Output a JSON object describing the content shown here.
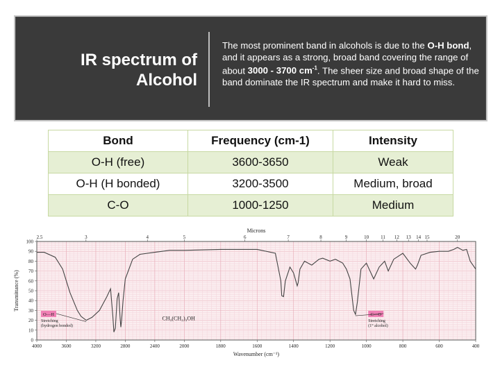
{
  "header": {
    "title_line1": "IR spectrum of",
    "title_line2": "Alcohol",
    "desc": {
      "t1": "The most prominent band in alcohols is due to the ",
      "b1": "O-H bond",
      "t2": ", and it appears as a strong, broad band covering the range of about ",
      "b2": "3000 - 3700 cm",
      "sup": "-1",
      "t3": ". The sheer size and broad shape of the band dominate the IR spectrum and make it hard to miss."
    }
  },
  "table": {
    "headers": [
      "Bond",
      "Frequency (cm-1)",
      "Intensity"
    ],
    "rows": [
      [
        "O-H (free)",
        "3600-3650",
        "Weak"
      ],
      [
        "O-H (H bonded)",
        "3200-3500",
        "Medium, broad"
      ],
      [
        "C-O",
        "1000-1250",
        "Medium"
      ]
    ]
  },
  "chart_data": {
    "type": "line",
    "title": "Microns",
    "xlabel": "Wavenumber (cm⁻¹)",
    "ylabel": "Transmittance (%)",
    "xlim": [
      4000,
      400
    ],
    "ylim": [
      0,
      100
    ],
    "x_ticks": [
      4000,
      3600,
      3200,
      2800,
      2400,
      2000,
      1800,
      1600,
      1400,
      1200,
      1000,
      800,
      600,
      400
    ],
    "y_ticks": [
      0,
      10,
      20,
      30,
      40,
      50,
      60,
      70,
      80,
      90,
      100
    ],
    "micron_ticks": [
      {
        "label": "2.5",
        "wn": 4000
      },
      {
        "label": "3",
        "wn": 3333
      },
      {
        "label": "4",
        "wn": 2500
      },
      {
        "label": "5",
        "wn": 2000
      },
      {
        "label": "6",
        "wn": 1667
      },
      {
        "label": "7",
        "wn": 1429
      },
      {
        "label": "8",
        "wn": 1250
      },
      {
        "label": "9",
        "wn": 1111
      },
      {
        "label": "10",
        "wn": 1000
      },
      {
        "label": "11",
        "wn": 909
      },
      {
        "label": "12",
        "wn": 833
      },
      {
        "label": "13",
        "wn": 769
      },
      {
        "label": "14",
        "wn": 714
      },
      {
        "label": "15",
        "wn": 667
      },
      {
        "label": "20",
        "wn": 500
      }
    ],
    "grid": true,
    "series": [
      {
        "x": [
          4000,
          3900,
          3750,
          3650,
          3550,
          3450,
          3400,
          3330,
          3250,
          3150,
          3050,
          3000,
          2970,
          2955,
          2935,
          2910,
          2890,
          2870,
          2860,
          2850,
          2830,
          2800,
          2700,
          2600,
          2400,
          2200,
          2000,
          1800,
          1600,
          1500,
          1470,
          1465,
          1455,
          1445,
          1420,
          1400,
          1380,
          1375,
          1365,
          1340,
          1300,
          1260,
          1240,
          1200,
          1170,
          1130,
          1110,
          1090,
          1070,
          1060,
          1050,
          1030,
          1000,
          960,
          930,
          900,
          880,
          850,
          800,
          760,
          730,
          720,
          700,
          650,
          600,
          550,
          520,
          500,
          470,
          450,
          430,
          400
        ],
        "y": [
          89,
          89,
          84,
          72,
          48,
          30,
          24,
          20,
          23,
          30,
          44,
          52,
          25,
          8,
          12,
          42,
          48,
          22,
          13,
          20,
          40,
          62,
          82,
          87,
          89,
          91,
          91,
          92,
          92,
          88,
          60,
          45,
          44,
          60,
          74,
          68,
          55,
          58,
          72,
          80,
          76,
          82,
          83,
          80,
          82,
          78,
          72,
          62,
          30,
          26,
          38,
          72,
          78,
          62,
          74,
          80,
          70,
          82,
          88,
          78,
          72,
          76,
          86,
          89,
          90,
          90,
          92,
          94,
          91,
          92,
          80,
          72
        ],
        "color": "#444444"
      }
    ],
    "annotations": [
      {
        "label": "O—H",
        "note1": "Stretching",
        "note2": "(hydrogen bonded)",
        "wn": 3330,
        "t": 20
      },
      {
        "label": "C—O",
        "note1": "Stretching",
        "note2": "(1° alcohol)",
        "wn": 1060,
        "t": 26
      }
    ],
    "formula": "CH₃(CH₂)₃OH"
  }
}
